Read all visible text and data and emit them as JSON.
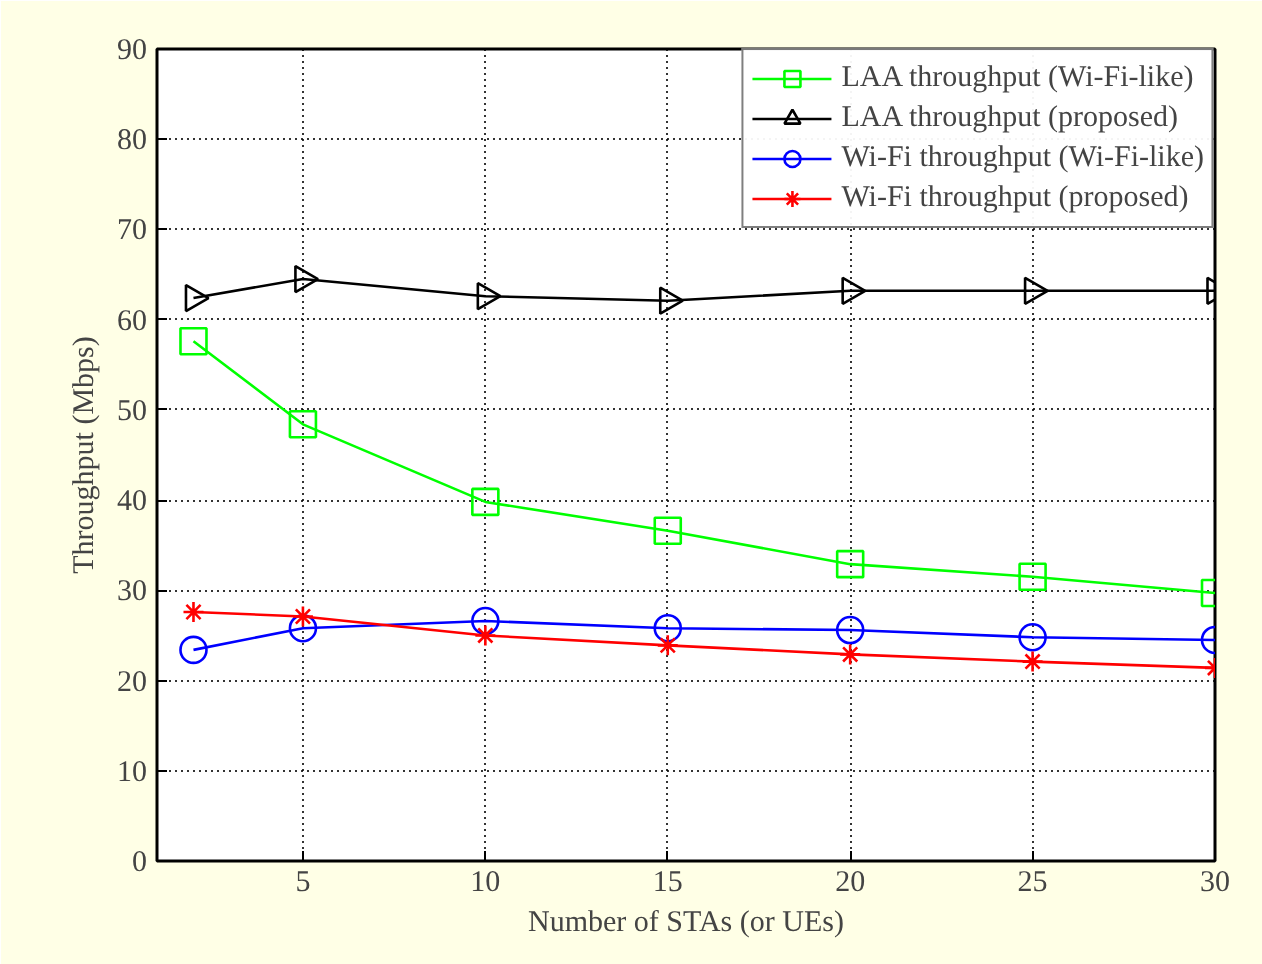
{
  "chart_data": {
    "type": "line",
    "xlabel": "Number of STAs (or UEs)",
    "ylabel": "Throughput (Mbps)",
    "x": [
      2,
      5,
      10,
      15,
      20,
      25,
      30
    ],
    "series": [
      {
        "name": "LAA throughput (Wi-Fi-like)",
        "color": "#00ff00",
        "marker": "square",
        "values": [
          57.6,
          48.4,
          39.8,
          36.6,
          32.9,
          31.5,
          29.7
        ]
      },
      {
        "name": "LAA throughput (proposed)",
        "color": "#000000",
        "marker": "triangle",
        "values": [
          62.4,
          64.5,
          62.6,
          62.1,
          63.2,
          63.2,
          63.2
        ]
      },
      {
        "name": "Wi-Fi throughput (Wi-Fi-like)",
        "color": "#0000ff",
        "marker": "circle",
        "values": [
          23.4,
          25.8,
          26.6,
          25.8,
          25.6,
          24.8,
          24.5
        ]
      },
      {
        "name": "Wi-Fi throughput (proposed)",
        "color": "#ff0000",
        "marker": "cross",
        "values": [
          27.6,
          27.1,
          25.0,
          23.9,
          22.9,
          22.1,
          21.4
        ]
      }
    ],
    "xlim": [
      1,
      30
    ],
    "xticks": [
      5,
      10,
      15,
      20,
      25,
      30
    ],
    "ylim": [
      0,
      90
    ],
    "yticks": [
      0,
      10,
      20,
      30,
      40,
      50,
      60,
      70,
      80,
      90
    ],
    "grid": true,
    "legend": "top right",
    "line_style": "solid"
  }
}
